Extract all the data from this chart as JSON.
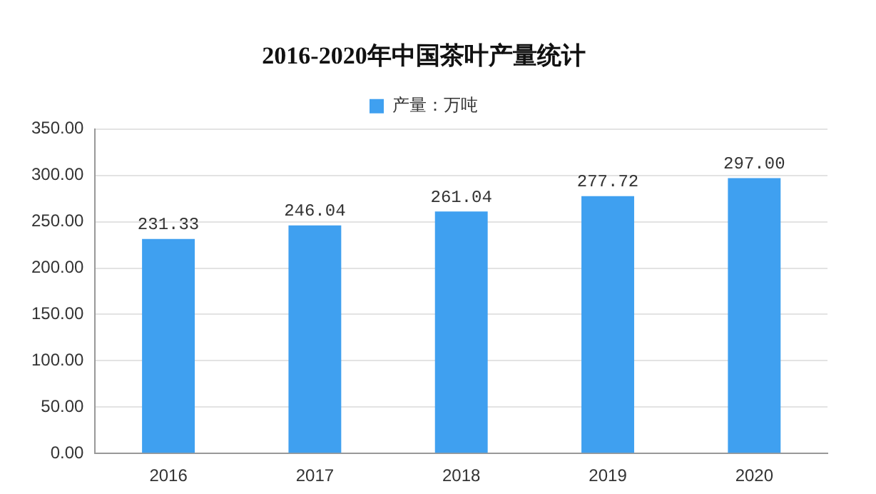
{
  "chart_data": {
    "type": "bar",
    "title": "2016-2020年中国茶叶产量统计",
    "categories": [
      "2016",
      "2017",
      "2018",
      "2019",
      "2020"
    ],
    "series": [
      {
        "name": "产量：万吨",
        "color": "#3fa0f0",
        "values": [
          231.33,
          246.04,
          261.04,
          277.72,
          297.0
        ],
        "value_labels": [
          "231.33",
          "246.04",
          "261.04",
          "277.72",
          "297.00"
        ]
      }
    ],
    "ylim": [
      0,
      350
    ],
    "yticks": [
      {
        "value": 0,
        "label": "0.00"
      },
      {
        "value": 50,
        "label": "50.00"
      },
      {
        "value": 100,
        "label": "100.00"
      },
      {
        "value": 150,
        "label": "150.00"
      },
      {
        "value": 200,
        "label": "200.00"
      },
      {
        "value": 250,
        "label": "250.00"
      },
      {
        "value": 300,
        "label": "300.00"
      },
      {
        "value": 350,
        "label": "350.00"
      }
    ],
    "grid": "y",
    "legend": "top"
  }
}
